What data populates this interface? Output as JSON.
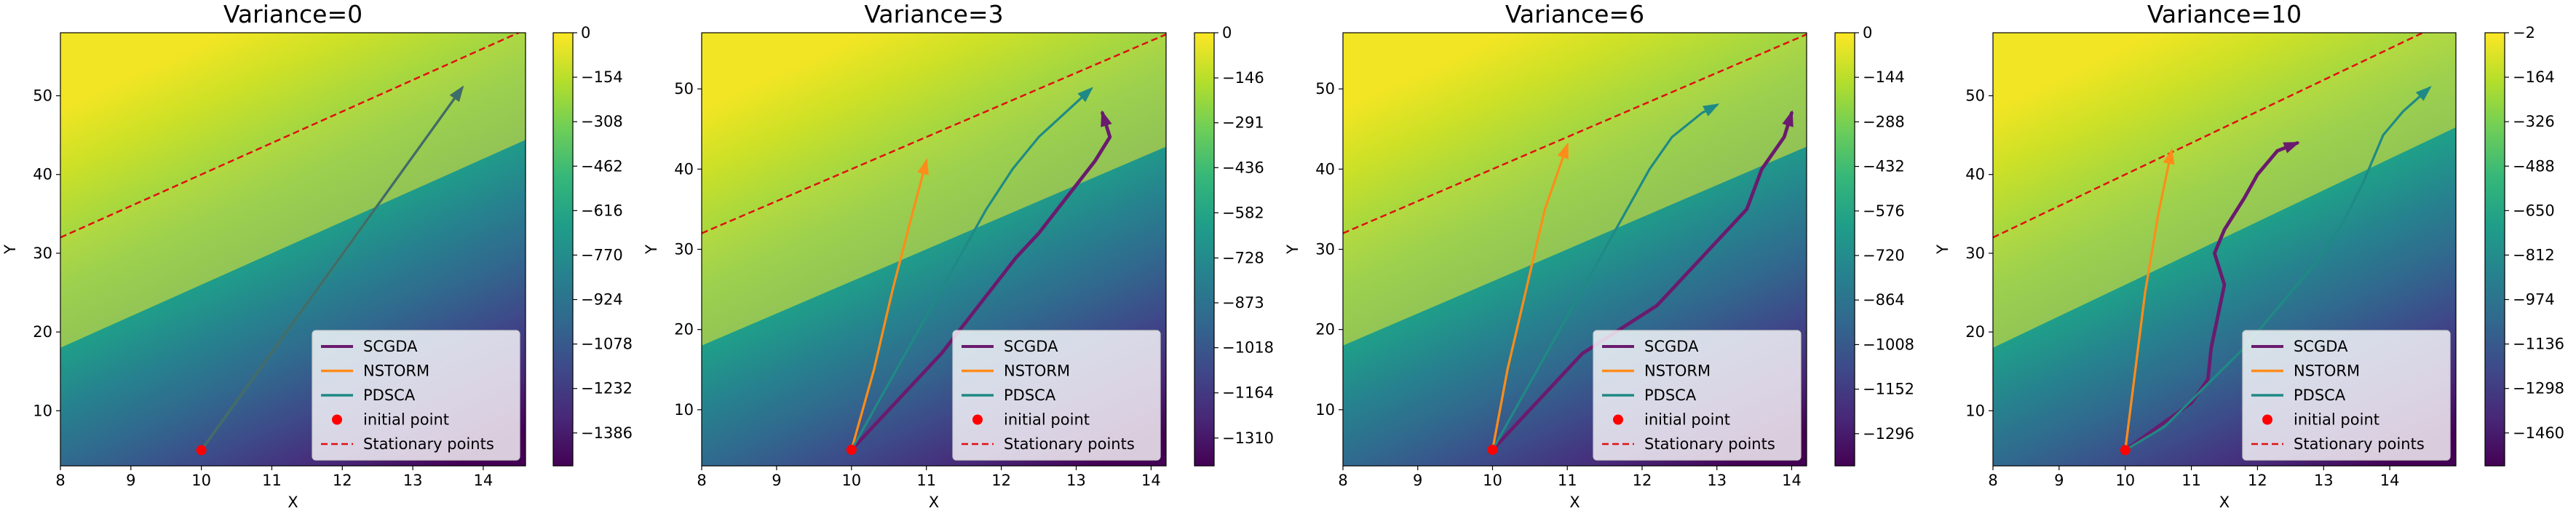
{
  "figure": {
    "legend_labels": {
      "scgda": "SCGDA",
      "nstorm": "NSTORM",
      "pdsca": "PDSCA",
      "initial": "initial point",
      "stationary": "Stationary points"
    },
    "xlabel": "X",
    "ylabel": "Y"
  },
  "colors": {
    "scgda": "#6a1b6e",
    "nstorm": "#ff8c1a",
    "pdsca": "#1f8a85",
    "initial_point": "#ff0000",
    "stationary_line": "#e01010",
    "viridis": [
      "#440154",
      "#482878",
      "#3e4989",
      "#31688e",
      "#26828e",
      "#1f9e89",
      "#35b779",
      "#6ece58",
      "#b5de2b",
      "#fde725"
    ]
  },
  "chart_data": [
    {
      "type": "line",
      "title": "Variance=0",
      "xlabel": "X",
      "ylabel": "Y",
      "xlim": [
        8,
        14.6
      ],
      "ylim": [
        3,
        58
      ],
      "xticks": [
        "8",
        "9",
        "10",
        "11",
        "12",
        "13",
        "14"
      ],
      "yticks": [
        "10",
        "20",
        "30",
        "40",
        "50"
      ],
      "colorbar": {
        "ticks": [
          "0",
          "−154",
          "−308",
          "−462",
          "−616",
          "−770",
          "−924",
          "−1078",
          "−1232",
          "−1386"
        ],
        "min": -1500,
        "max": 0
      },
      "stationary_line": {
        "slope": 4,
        "intercept": 0
      },
      "initial_point": [
        10,
        5
      ],
      "series": [
        {
          "name": "SCGDA",
          "color": "#6a1b6e",
          "width": 2,
          "arrow": true,
          "points": [
            [
              10,
              5
            ],
            [
              13.7,
              51
            ]
          ]
        },
        {
          "name": "NSTORM",
          "color": "#ff8c1a",
          "width": 2,
          "arrow": true,
          "points": [
            [
              10,
              5
            ],
            [
              13.7,
              51
            ]
          ]
        },
        {
          "name": "PDSCA",
          "color": "#3c6e6a",
          "width": 2,
          "arrow": true,
          "points": [
            [
              10,
              5
            ],
            [
              13.7,
              51
            ]
          ]
        }
      ],
      "legend": "lower right"
    },
    {
      "type": "line",
      "title": "Variance=3",
      "xlabel": "X",
      "ylabel": "Y",
      "xlim": [
        8,
        14.2
      ],
      "ylim": [
        3,
        57
      ],
      "xticks": [
        "8",
        "9",
        "10",
        "11",
        "12",
        "13",
        "14"
      ],
      "yticks": [
        "10",
        "20",
        "30",
        "40",
        "50"
      ],
      "colorbar": {
        "ticks": [
          "0",
          "−146",
          "−291",
          "−436",
          "−582",
          "−728",
          "−873",
          "−1018",
          "−1164",
          "−1310"
        ],
        "min": -1400,
        "max": 0
      },
      "stationary_line": {
        "slope": 4,
        "intercept": 0
      },
      "initial_point": [
        10,
        5
      ],
      "series": [
        {
          "name": "SCGDA",
          "color": "#6a1b6e",
          "width": 3,
          "arrow": true,
          "points": [
            [
              10,
              5
            ],
            [
              10.3,
              8
            ],
            [
              10.6,
              11
            ],
            [
              10.9,
              14
            ],
            [
              11.2,
              17
            ],
            [
              11.45,
              20
            ],
            [
              11.7,
              23
            ],
            [
              11.95,
              26
            ],
            [
              12.2,
              29
            ],
            [
              12.5,
              32
            ],
            [
              12.75,
              35
            ],
            [
              13.0,
              38
            ],
            [
              13.25,
              41
            ],
            [
              13.45,
              44
            ],
            [
              13.35,
              47
            ]
          ]
        },
        {
          "name": "NSTORM",
          "color": "#ff8c1a",
          "width": 2,
          "arrow": true,
          "points": [
            [
              10,
              5
            ],
            [
              10.3,
              15
            ],
            [
              10.55,
              25
            ],
            [
              10.8,
              34
            ],
            [
              11.0,
              41
            ]
          ]
        },
        {
          "name": "PDSCA",
          "color": "#1f8a85",
          "width": 2,
          "arrow": true,
          "points": [
            [
              10,
              5
            ],
            [
              10.3,
              10
            ],
            [
              10.6,
              15
            ],
            [
              10.9,
              20
            ],
            [
              11.2,
              25
            ],
            [
              11.5,
              30
            ],
            [
              11.8,
              35
            ],
            [
              12.15,
              40
            ],
            [
              12.5,
              44
            ],
            [
              12.85,
              47
            ],
            [
              13.2,
              50
            ]
          ]
        }
      ],
      "legend": "lower right"
    },
    {
      "type": "line",
      "title": "Variance=6",
      "xlabel": "X",
      "ylabel": "Y",
      "xlim": [
        8,
        14.2
      ],
      "ylim": [
        3,
        57
      ],
      "xticks": [
        "8",
        "9",
        "10",
        "11",
        "12",
        "13",
        "14"
      ],
      "yticks": [
        "10",
        "20",
        "30",
        "40",
        "50"
      ],
      "colorbar": {
        "ticks": [
          "0",
          "−144",
          "−288",
          "−432",
          "−576",
          "−720",
          "−864",
          "−1008",
          "−1152",
          "−1296"
        ],
        "min": -1400,
        "max": 0
      },
      "stationary_line": {
        "slope": 4,
        "intercept": 0
      },
      "initial_point": [
        10,
        5
      ],
      "series": [
        {
          "name": "SCGDA",
          "color": "#6a1b6e",
          "width": 3,
          "arrow": true,
          "points": [
            [
              10,
              5
            ],
            [
              10.4,
              9
            ],
            [
              10.8,
              13
            ],
            [
              11.2,
              17
            ],
            [
              11.7,
              20
            ],
            [
              12.2,
              23
            ],
            [
              12.6,
              27
            ],
            [
              13.0,
              31
            ],
            [
              13.4,
              35
            ],
            [
              13.6,
              40
            ],
            [
              13.9,
              44
            ],
            [
              14.0,
              47
            ]
          ]
        },
        {
          "name": "NSTORM",
          "color": "#ff8c1a",
          "width": 2,
          "arrow": true,
          "points": [
            [
              10,
              5
            ],
            [
              10.2,
              15
            ],
            [
              10.45,
              25
            ],
            [
              10.7,
              35
            ],
            [
              11.0,
              43
            ]
          ]
        },
        {
          "name": "PDSCA",
          "color": "#1f8a85",
          "width": 2,
          "arrow": true,
          "points": [
            [
              10,
              5
            ],
            [
              10.3,
              10
            ],
            [
              10.6,
              15
            ],
            [
              10.9,
              20
            ],
            [
              11.2,
              25
            ],
            [
              11.5,
              30
            ],
            [
              11.8,
              35
            ],
            [
              12.1,
              40
            ],
            [
              12.4,
              44
            ],
            [
              12.8,
              47
            ],
            [
              13.0,
              48
            ]
          ]
        }
      ],
      "legend": "lower right"
    },
    {
      "type": "line",
      "title": "Variance=10",
      "xlabel": "X",
      "ylabel": "Y",
      "xlim": [
        8,
        15.0
      ],
      "ylim": [
        3,
        58
      ],
      "xticks": [
        "8",
        "9",
        "10",
        "11",
        "12",
        "13",
        "14"
      ],
      "yticks": [
        "10",
        "20",
        "30",
        "40",
        "50"
      ],
      "colorbar": {
        "ticks": [
          "−2",
          "−164",
          "−326",
          "−488",
          "−650",
          "−812",
          "−974",
          "−1136",
          "−1298",
          "−1460"
        ],
        "min": -1580,
        "max": -2
      },
      "stationary_line": {
        "slope": 4,
        "intercept": 0
      },
      "initial_point": [
        10,
        5
      ],
      "series": [
        {
          "name": "SCGDA",
          "color": "#6a1b6e",
          "width": 3,
          "arrow": true,
          "points": [
            [
              10,
              5
            ],
            [
              10.5,
              8
            ],
            [
              11.0,
              11
            ],
            [
              11.25,
              14
            ],
            [
              11.3,
              18
            ],
            [
              11.4,
              22
            ],
            [
              11.5,
              26
            ],
            [
              11.35,
              30
            ],
            [
              11.5,
              33
            ],
            [
              11.8,
              37
            ],
            [
              12.0,
              40
            ],
            [
              12.3,
              43
            ],
            [
              12.6,
              44
            ]
          ]
        },
        {
          "name": "NSTORM",
          "color": "#ff8c1a",
          "width": 2,
          "arrow": true,
          "points": [
            [
              10,
              5
            ],
            [
              10.15,
              15
            ],
            [
              10.3,
              25
            ],
            [
              10.5,
              35
            ],
            [
              10.7,
              43
            ]
          ]
        },
        {
          "name": "PDSCA",
          "color": "#1f8a85",
          "width": 2,
          "arrow": true,
          "points": [
            [
              10,
              5
            ],
            [
              10.6,
              8
            ],
            [
              11.2,
              13
            ],
            [
              11.8,
              18
            ],
            [
              12.4,
              24
            ],
            [
              12.9,
              29
            ],
            [
              13.3,
              34
            ],
            [
              13.6,
              39
            ],
            [
              13.9,
              45
            ],
            [
              14.2,
              48
            ],
            [
              14.6,
              51
            ]
          ]
        }
      ],
      "legend": "lower right"
    }
  ]
}
